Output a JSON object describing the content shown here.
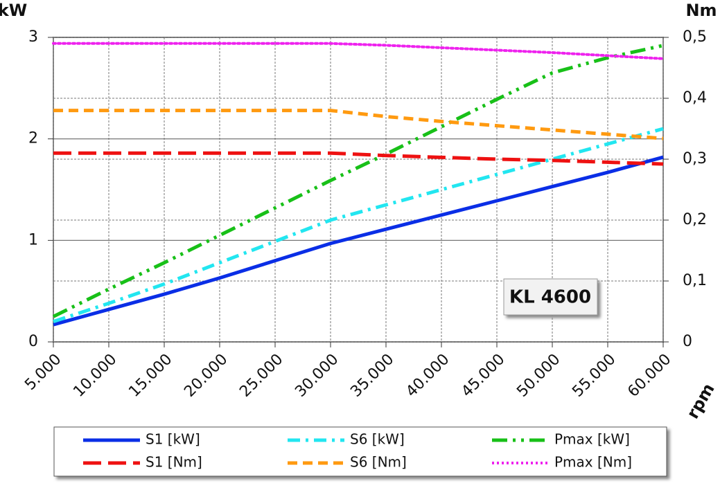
{
  "chart_data": {
    "type": "line",
    "x": [
      5000,
      10000,
      15000,
      20000,
      25000,
      30000,
      35000,
      40000,
      45000,
      50000,
      55000,
      60000
    ],
    "xlim": [
      5000,
      60000
    ],
    "xticks": [
      {
        "value": 5000,
        "label": "5.000"
      },
      {
        "value": 10000,
        "label": "10.000"
      },
      {
        "value": 15000,
        "label": "15.000"
      },
      {
        "value": 20000,
        "label": "20.000"
      },
      {
        "value": 25000,
        "label": "25.000"
      },
      {
        "value": 30000,
        "label": "30.000"
      },
      {
        "value": 35000,
        "label": "35.000"
      },
      {
        "value": 40000,
        "label": "40.000"
      },
      {
        "value": 45000,
        "label": "45.000"
      },
      {
        "value": 50000,
        "label": "50.000"
      },
      {
        "value": 55000,
        "label": "55.000"
      },
      {
        "value": 60000,
        "label": "60.000"
      }
    ],
    "ylim": [
      0,
      3
    ],
    "yticks": [
      0,
      1,
      2,
      3
    ],
    "y2lim": [
      0,
      0.5
    ],
    "y2ticks": [
      0,
      {
        "value": 0.1,
        "label": "0,1"
      },
      {
        "value": 0.2,
        "label": "0,2"
      },
      {
        "value": 0.3,
        "label": "0,3"
      },
      {
        "value": 0.4,
        "label": "0,4"
      },
      {
        "value": 0.5,
        "label": "0,5"
      }
    ],
    "ylabel": "kW",
    "y2label": "Nm",
    "xlabel": "rpm",
    "annotation": "KL 4600",
    "grid": true,
    "series": [
      {
        "name": "S1 [kW]",
        "color": "#0a2ee6",
        "linestyle": "solid",
        "values": [
          0.17,
          0.32,
          0.47,
          0.63,
          0.8,
          0.97,
          1.11,
          1.25,
          1.39,
          1.53,
          1.67,
          1.82
        ]
      },
      {
        "name": "S6 [kW]",
        "color": "#22e6f0",
        "linestyle": "dashdot",
        "values": [
          0.2,
          0.38,
          0.57,
          0.78,
          0.99,
          1.2,
          1.35,
          1.5,
          1.65,
          1.8,
          1.95,
          2.1
        ]
      },
      {
        "name": "Pmax [kW]",
        "color": "#18c018",
        "linestyle": "dashdotdot",
        "values": [
          0.25,
          0.52,
          0.78,
          1.05,
          1.32,
          1.59,
          1.85,
          2.12,
          2.39,
          2.65,
          2.8,
          2.92
        ]
      },
      {
        "name": "S1 [Nm]",
        "color": "#ee1111",
        "linestyle": "longdash",
        "axis": "y2",
        "values": [
          0.31,
          0.31,
          0.31,
          0.31,
          0.31,
          0.31,
          0.306,
          0.303,
          0.3,
          0.298,
          0.295,
          0.292
        ]
      },
      {
        "name": "S6 [Nm]",
        "color": "#ff9a10",
        "linestyle": "dashed",
        "axis": "y2",
        "values": [
          0.38,
          0.38,
          0.38,
          0.38,
          0.38,
          0.38,
          0.37,
          0.362,
          0.355,
          0.348,
          0.341,
          0.334
        ]
      },
      {
        "name": "Pmax [Nm]",
        "color": "#ee22ee",
        "linestyle": "dotted",
        "axis": "y2",
        "values": [
          0.49,
          0.49,
          0.49,
          0.49,
          0.49,
          0.49,
          0.487,
          0.483,
          0.479,
          0.475,
          0.47,
          0.465
        ]
      }
    ]
  }
}
